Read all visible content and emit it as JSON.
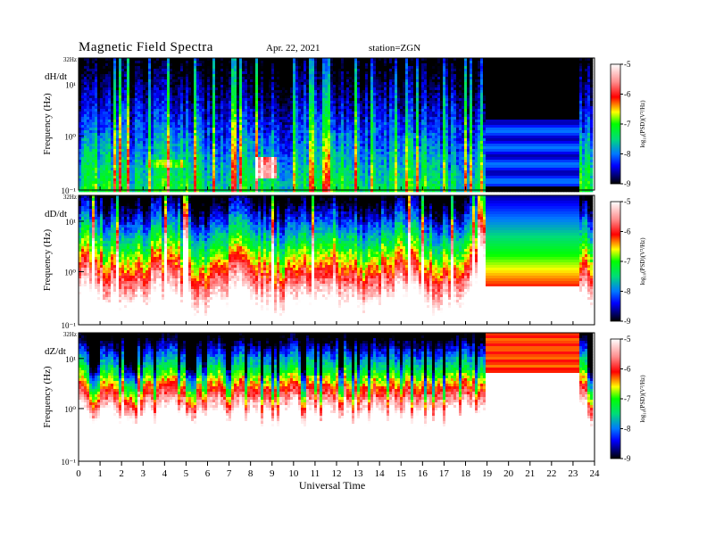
{
  "header": {
    "title": "Magnetic Field Spectra",
    "date": "Apr. 22, 2021",
    "station": "station=ZGN"
  },
  "chart_data": {
    "type": "heatmap",
    "xlabel": "Universal Time",
    "ylabel": "Frequency (Hz)",
    "x_ticks": [
      "0",
      "1",
      "2",
      "3",
      "4",
      "5",
      "6",
      "7",
      "8",
      "9",
      "10",
      "11",
      "12",
      "13",
      "14",
      "15",
      "16",
      "17",
      "18",
      "19",
      "20",
      "21",
      "22",
      "23",
      "24"
    ],
    "xlim": [
      0,
      24
    ],
    "y_scale": "log",
    "y_top_label": "32Hz",
    "colorbar": {
      "label": "log₁₀(PSD)(V²/Hz)",
      "range": [
        -9,
        -5
      ],
      "ticks": [
        "-5",
        "-6",
        "-7",
        "-8",
        "-9"
      ],
      "colors": [
        "#000000",
        "#0000ff",
        "#00ff00",
        "#ffff00",
        "#ff0000",
        "#ffffff"
      ]
    },
    "panels": [
      {
        "name": "dH/dt",
        "y_ticks": [
          "10¹",
          "10⁰",
          "10⁻¹"
        ],
        "data_gap_ut": [
          19,
          23
        ]
      },
      {
        "name": "dD/dt",
        "y_ticks": [
          "10¹",
          "10⁰",
          "10⁻¹"
        ],
        "data_gap_ut": [
          19,
          23
        ]
      },
      {
        "name": "dZ/dt",
        "y_ticks": [
          "10¹",
          "10⁰",
          "10⁻¹"
        ],
        "data_gap_ut": [
          19,
          23
        ]
      }
    ]
  }
}
